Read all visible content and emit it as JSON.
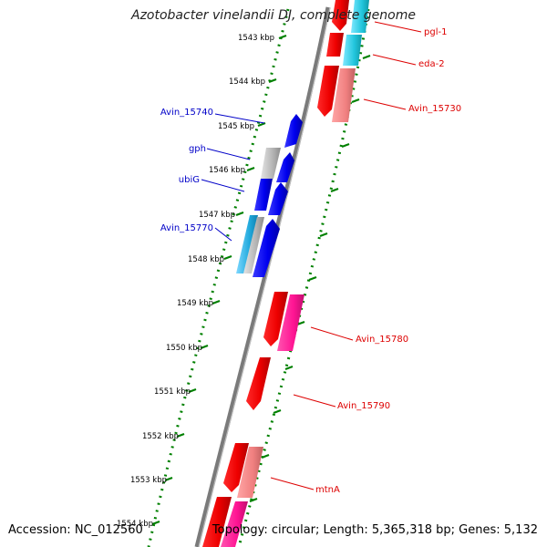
{
  "title": "Azotobacter vinelandii DJ, complete genome",
  "accession": "Accession: NC_012560",
  "topology": "Topology: circular; Length: 5,365,318 bp; Genes: 5,132",
  "colors": {
    "backbone": "#808080",
    "tick": "#008000",
    "forward_label": "#0000c8",
    "reverse_label": "#dd0000",
    "forward_gene": "#0000ee",
    "reverse_gene": "#ee0000"
  },
  "kbp_labels": [
    "1543 kbp",
    "1544 kbp",
    "1545 kbp",
    "1546 kbp",
    "1547 kbp",
    "1548 kbp",
    "1549 kbp",
    "1550 kbp",
    "1551 kbp",
    "1552 kbp",
    "1553 kbp",
    "1554 kbp"
  ],
  "gene_labels_left": [
    {
      "text": "Avin_15740"
    },
    {
      "text": "gph"
    },
    {
      "text": "ubiG"
    },
    {
      "text": "Avin_15770"
    }
  ],
  "gene_labels_right": [
    {
      "text": "pgl-1"
    },
    {
      "text": "eda-2"
    },
    {
      "text": "Avin_15730"
    },
    {
      "text": "Avin_15780"
    },
    {
      "text": "Avin_15790"
    },
    {
      "text": "mtnA"
    }
  ]
}
